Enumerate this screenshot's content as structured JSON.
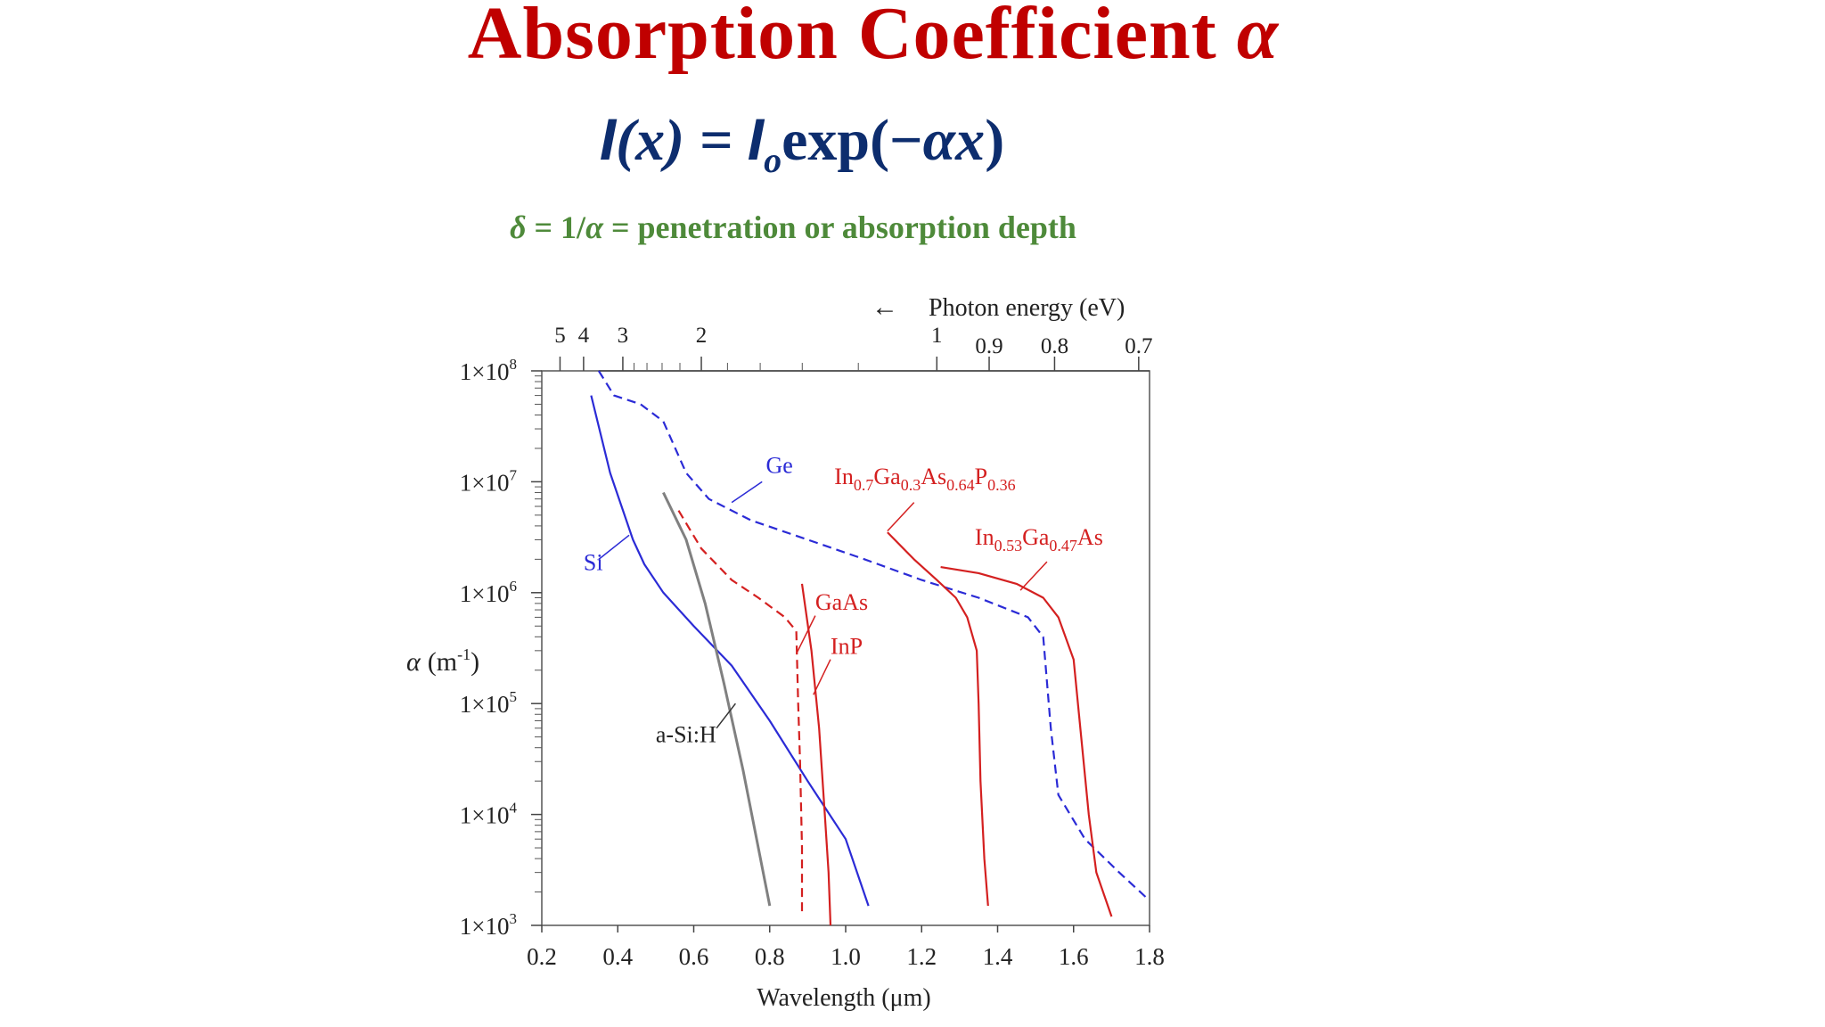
{
  "slide": {
    "title_text": "Absorption Coefficient",
    "title_symbol": "α",
    "eq_I": "I",
    "eq_lhs_arg": "(x) = ",
    "eq_I0": "I",
    "eq_I0_sub": "o",
    "eq_exp": "exp(−",
    "eq_ax": "αx",
    "eq_close": ")",
    "depth_delta": "δ",
    "depth_mid": " = 1/",
    "depth_alpha": "α",
    "depth_rest": " = penetration or absorption depth"
  },
  "chart_data": {
    "type": "line",
    "xlabel": "Wavelength (μm)",
    "ylabel_symbol": "α",
    "ylabel_unit": "(m",
    "ylabel_unit_sup": "-1",
    "ylabel_close": ")",
    "xlim": [
      0.2,
      1.8
    ],
    "ylim": [
      1000,
      100000000
    ],
    "y_scale": "log",
    "x_ticks": [
      "0.2",
      "0.4",
      "0.6",
      "0.8",
      "1.0",
      "1.2",
      "1.4",
      "1.6",
      "1.8"
    ],
    "y_ticks": [
      {
        "mantissa": "1×10",
        "exp": "3",
        "value": 1000
      },
      {
        "mantissa": "1×10",
        "exp": "4",
        "value": 10000
      },
      {
        "mantissa": "1×10",
        "exp": "5",
        "value": 100000
      },
      {
        "mantissa": "1×10",
        "exp": "6",
        "value": 1000000
      },
      {
        "mantissa": "1×10",
        "exp": "7",
        "value": 10000000
      },
      {
        "mantissa": "1×10",
        "exp": "8",
        "value": 100000000
      }
    ],
    "top_axis": {
      "label": "Photon energy (eV)",
      "arrow": "←",
      "major_ticks": [
        {
          "label": "5",
          "ev": 5
        },
        {
          "label": "4",
          "ev": 4
        },
        {
          "label": "3",
          "ev": 3
        },
        {
          "label": "2",
          "ev": 2
        },
        {
          "label": "1",
          "ev": 1
        },
        {
          "label": "0.9",
          "ev": 0.9
        },
        {
          "label": "0.8",
          "ev": 0.8
        },
        {
          "label": "0.7",
          "ev": 0.7
        }
      ],
      "minor_ticks_ev": [
        2.8,
        2.6,
        2.4,
        2.2,
        1.8,
        1.6,
        1.4,
        1.2
      ]
    },
    "series": [
      {
        "name": "Si",
        "color": "#2b2bd6",
        "style": "solid",
        "points": [
          [
            0.33,
            60000000
          ],
          [
            0.38,
            12000000
          ],
          [
            0.44,
            3000000
          ],
          [
            0.47,
            1800000
          ],
          [
            0.52,
            1000000
          ],
          [
            0.6,
            500000
          ],
          [
            0.7,
            220000
          ],
          [
            0.8,
            70000
          ],
          [
            0.9,
            20000
          ],
          [
            1.0,
            6000
          ],
          [
            1.06,
            1500
          ]
        ]
      },
      {
        "name": "Ge",
        "color": "#2b2bd6",
        "style": "dashed",
        "points": [
          [
            0.35,
            100000000
          ],
          [
            0.39,
            60000000
          ],
          [
            0.46,
            50000000
          ],
          [
            0.52,
            35000000
          ],
          [
            0.58,
            12000000
          ],
          [
            0.64,
            7000000
          ],
          [
            0.75,
            4500000
          ],
          [
            0.9,
            3000000
          ],
          [
            1.05,
            2000000
          ],
          [
            1.2,
            1300000
          ],
          [
            1.35,
            900000
          ],
          [
            1.48,
            600000
          ],
          [
            1.52,
            400000
          ],
          [
            1.54,
            60000
          ],
          [
            1.56,
            15000
          ],
          [
            1.63,
            6000
          ],
          [
            1.72,
            3000
          ],
          [
            1.79,
            1800
          ]
        ]
      },
      {
        "name": "a-Si:H",
        "color": "#808080",
        "style": "solid",
        "points": [
          [
            0.52,
            8000000
          ],
          [
            0.58,
            3000000
          ],
          [
            0.63,
            800000
          ],
          [
            0.68,
            150000
          ],
          [
            0.73,
            25000
          ],
          [
            0.77,
            5000
          ],
          [
            0.8,
            1500
          ]
        ]
      },
      {
        "name": "GaAs",
        "color": "#d42020",
        "style": "dashed",
        "points": [
          [
            0.56,
            5500000
          ],
          [
            0.62,
            2500000
          ],
          [
            0.7,
            1300000
          ],
          [
            0.77,
            900000
          ],
          [
            0.84,
            600000
          ],
          [
            0.87,
            450000
          ],
          [
            0.875,
            100000
          ],
          [
            0.88,
            30000
          ],
          [
            0.885,
            5000
          ],
          [
            0.885,
            1300
          ]
        ]
      },
      {
        "name": "InP",
        "color": "#d42020",
        "style": "solid",
        "points": [
          [
            0.885,
            1200000
          ],
          [
            0.91,
            300000
          ],
          [
            0.93,
            60000
          ],
          [
            0.945,
            10000
          ],
          [
            0.955,
            3000
          ],
          [
            0.96,
            1000
          ]
        ]
      },
      {
        "name": "In0.7Ga0.3As0.64P0.36",
        "color": "#d42020",
        "style": "solid",
        "points": [
          [
            1.11,
            3500000
          ],
          [
            1.18,
            2000000
          ],
          [
            1.24,
            1300000
          ],
          [
            1.29,
            900000
          ],
          [
            1.32,
            600000
          ],
          [
            1.345,
            300000
          ],
          [
            1.35,
            100000
          ],
          [
            1.355,
            20000
          ],
          [
            1.365,
            4000
          ],
          [
            1.375,
            1500
          ]
        ]
      },
      {
        "name": "In0.53Ga0.47As",
        "color": "#d42020",
        "style": "solid",
        "points": [
          [
            1.25,
            1700000
          ],
          [
            1.35,
            1500000
          ],
          [
            1.45,
            1200000
          ],
          [
            1.52,
            900000
          ],
          [
            1.56,
            600000
          ],
          [
            1.6,
            250000
          ],
          [
            1.62,
            50000
          ],
          [
            1.64,
            10000
          ],
          [
            1.66,
            3000
          ],
          [
            1.7,
            1200
          ]
        ]
      }
    ],
    "annotations": [
      {
        "series": "Ge",
        "label_html": [
          [
            "Ge",
            ""
          ]
        ],
        "label_pos": [
          0.79,
          12000000
        ],
        "leader": [
          [
            0.78,
            10000000
          ],
          [
            0.7,
            6500000
          ]
        ]
      },
      {
        "series": "Si",
        "label_html": [
          [
            "Si",
            ""
          ]
        ],
        "label_pos": [
          0.31,
          1600000
        ],
        "leader": [
          [
            0.35,
            2000000
          ],
          [
            0.43,
            3300000
          ]
        ]
      },
      {
        "series": "a-Si:H",
        "label_html": [
          [
            "a-Si:H",
            ""
          ]
        ],
        "label_pos": [
          0.5,
          45000
        ],
        "leader": [
          [
            0.66,
            60000
          ],
          [
            0.71,
            100000
          ]
        ]
      },
      {
        "series": "GaAs",
        "label_html": [
          [
            "GaAs",
            ""
          ]
        ],
        "label_pos": [
          0.92,
          700000
        ],
        "leader": [
          [
            0.92,
            620000
          ],
          [
            0.87,
            280000
          ]
        ]
      },
      {
        "series": "InP",
        "label_html": [
          [
            "InP",
            ""
          ]
        ],
        "label_pos": [
          0.96,
          280000
        ],
        "leader": [
          [
            0.96,
            250000
          ],
          [
            0.915,
            120000
          ]
        ]
      },
      {
        "series": "In0.7Ga0.3As0.64P0.36",
        "label_html": [
          [
            "In",
            ""
          ],
          [
            "0.7",
            "sub"
          ],
          [
            "Ga",
            ""
          ],
          [
            "0.3",
            "sub"
          ],
          [
            "As",
            ""
          ],
          [
            "0.64",
            "sub"
          ],
          [
            "P",
            ""
          ],
          [
            "0.36",
            "sub"
          ]
        ],
        "label_pos": [
          0.97,
          9500000
        ],
        "leader": [
          [
            1.18,
            6500000
          ],
          [
            1.11,
            3600000
          ]
        ]
      },
      {
        "series": "In0.53Ga0.47As",
        "label_html": [
          [
            "In",
            ""
          ],
          [
            "0.53",
            "sub"
          ],
          [
            "Ga",
            ""
          ],
          [
            "0.47",
            "sub"
          ],
          [
            "As",
            ""
          ]
        ],
        "label_pos": [
          1.34,
          2700000
        ],
        "leader": [
          [
            1.53,
            1900000
          ],
          [
            1.46,
            1050000
          ]
        ]
      }
    ]
  }
}
